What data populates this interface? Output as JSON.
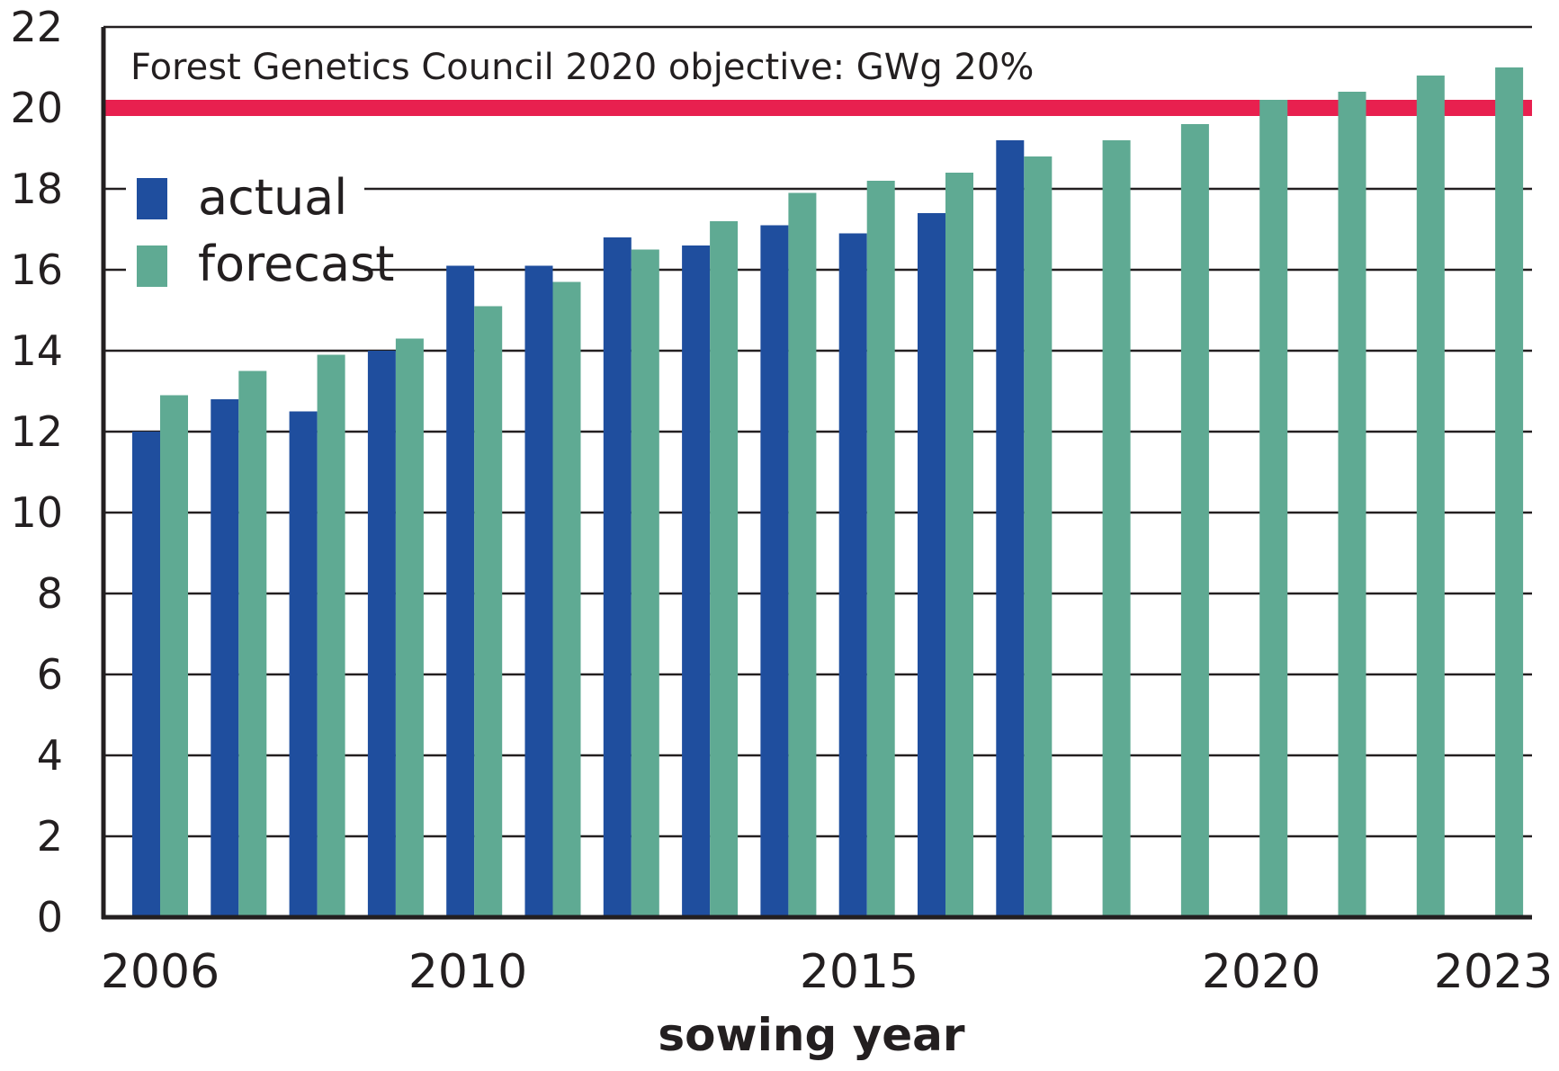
{
  "chart_data": {
    "type": "bar",
    "xlabel": "sowing year",
    "ylabel": "",
    "ylim": [
      0,
      22
    ],
    "yticks": [
      "0",
      "2",
      "4",
      "6",
      "8",
      "10",
      "12",
      "14",
      "16",
      "18",
      "20",
      "22"
    ],
    "grid": true,
    "legend_position": "top-left",
    "categories": [
      "2006",
      "2007",
      "2008",
      "2009",
      "2010",
      "2011",
      "2012",
      "2013",
      "2014",
      "2015",
      "2016",
      "2017",
      "2018",
      "2019",
      "2020",
      "2021",
      "2022",
      "2023"
    ],
    "x_tick_labels": [
      "2006",
      "2010",
      "2015",
      "2020",
      "2023"
    ],
    "series": [
      {
        "name": "actual",
        "color": "#1f4e9e",
        "values": [
          12.0,
          12.8,
          12.5,
          14.0,
          16.1,
          16.1,
          16.8,
          16.6,
          17.1,
          16.9,
          17.4,
          19.2,
          null,
          null,
          null,
          null,
          null,
          null
        ]
      },
      {
        "name": "forecast",
        "color": "#5faa93",
        "values": [
          12.9,
          13.5,
          13.9,
          14.3,
          15.1,
          15.7,
          16.5,
          17.2,
          17.9,
          18.2,
          18.4,
          18.8,
          19.2,
          19.6,
          20.2,
          20.4,
          20.8,
          21.0
        ]
      }
    ],
    "annotations": [
      {
        "text": "Forest Genetics Council 2020 objective: GWg 20%",
        "y": 20,
        "color": "#e8204f"
      }
    ]
  }
}
